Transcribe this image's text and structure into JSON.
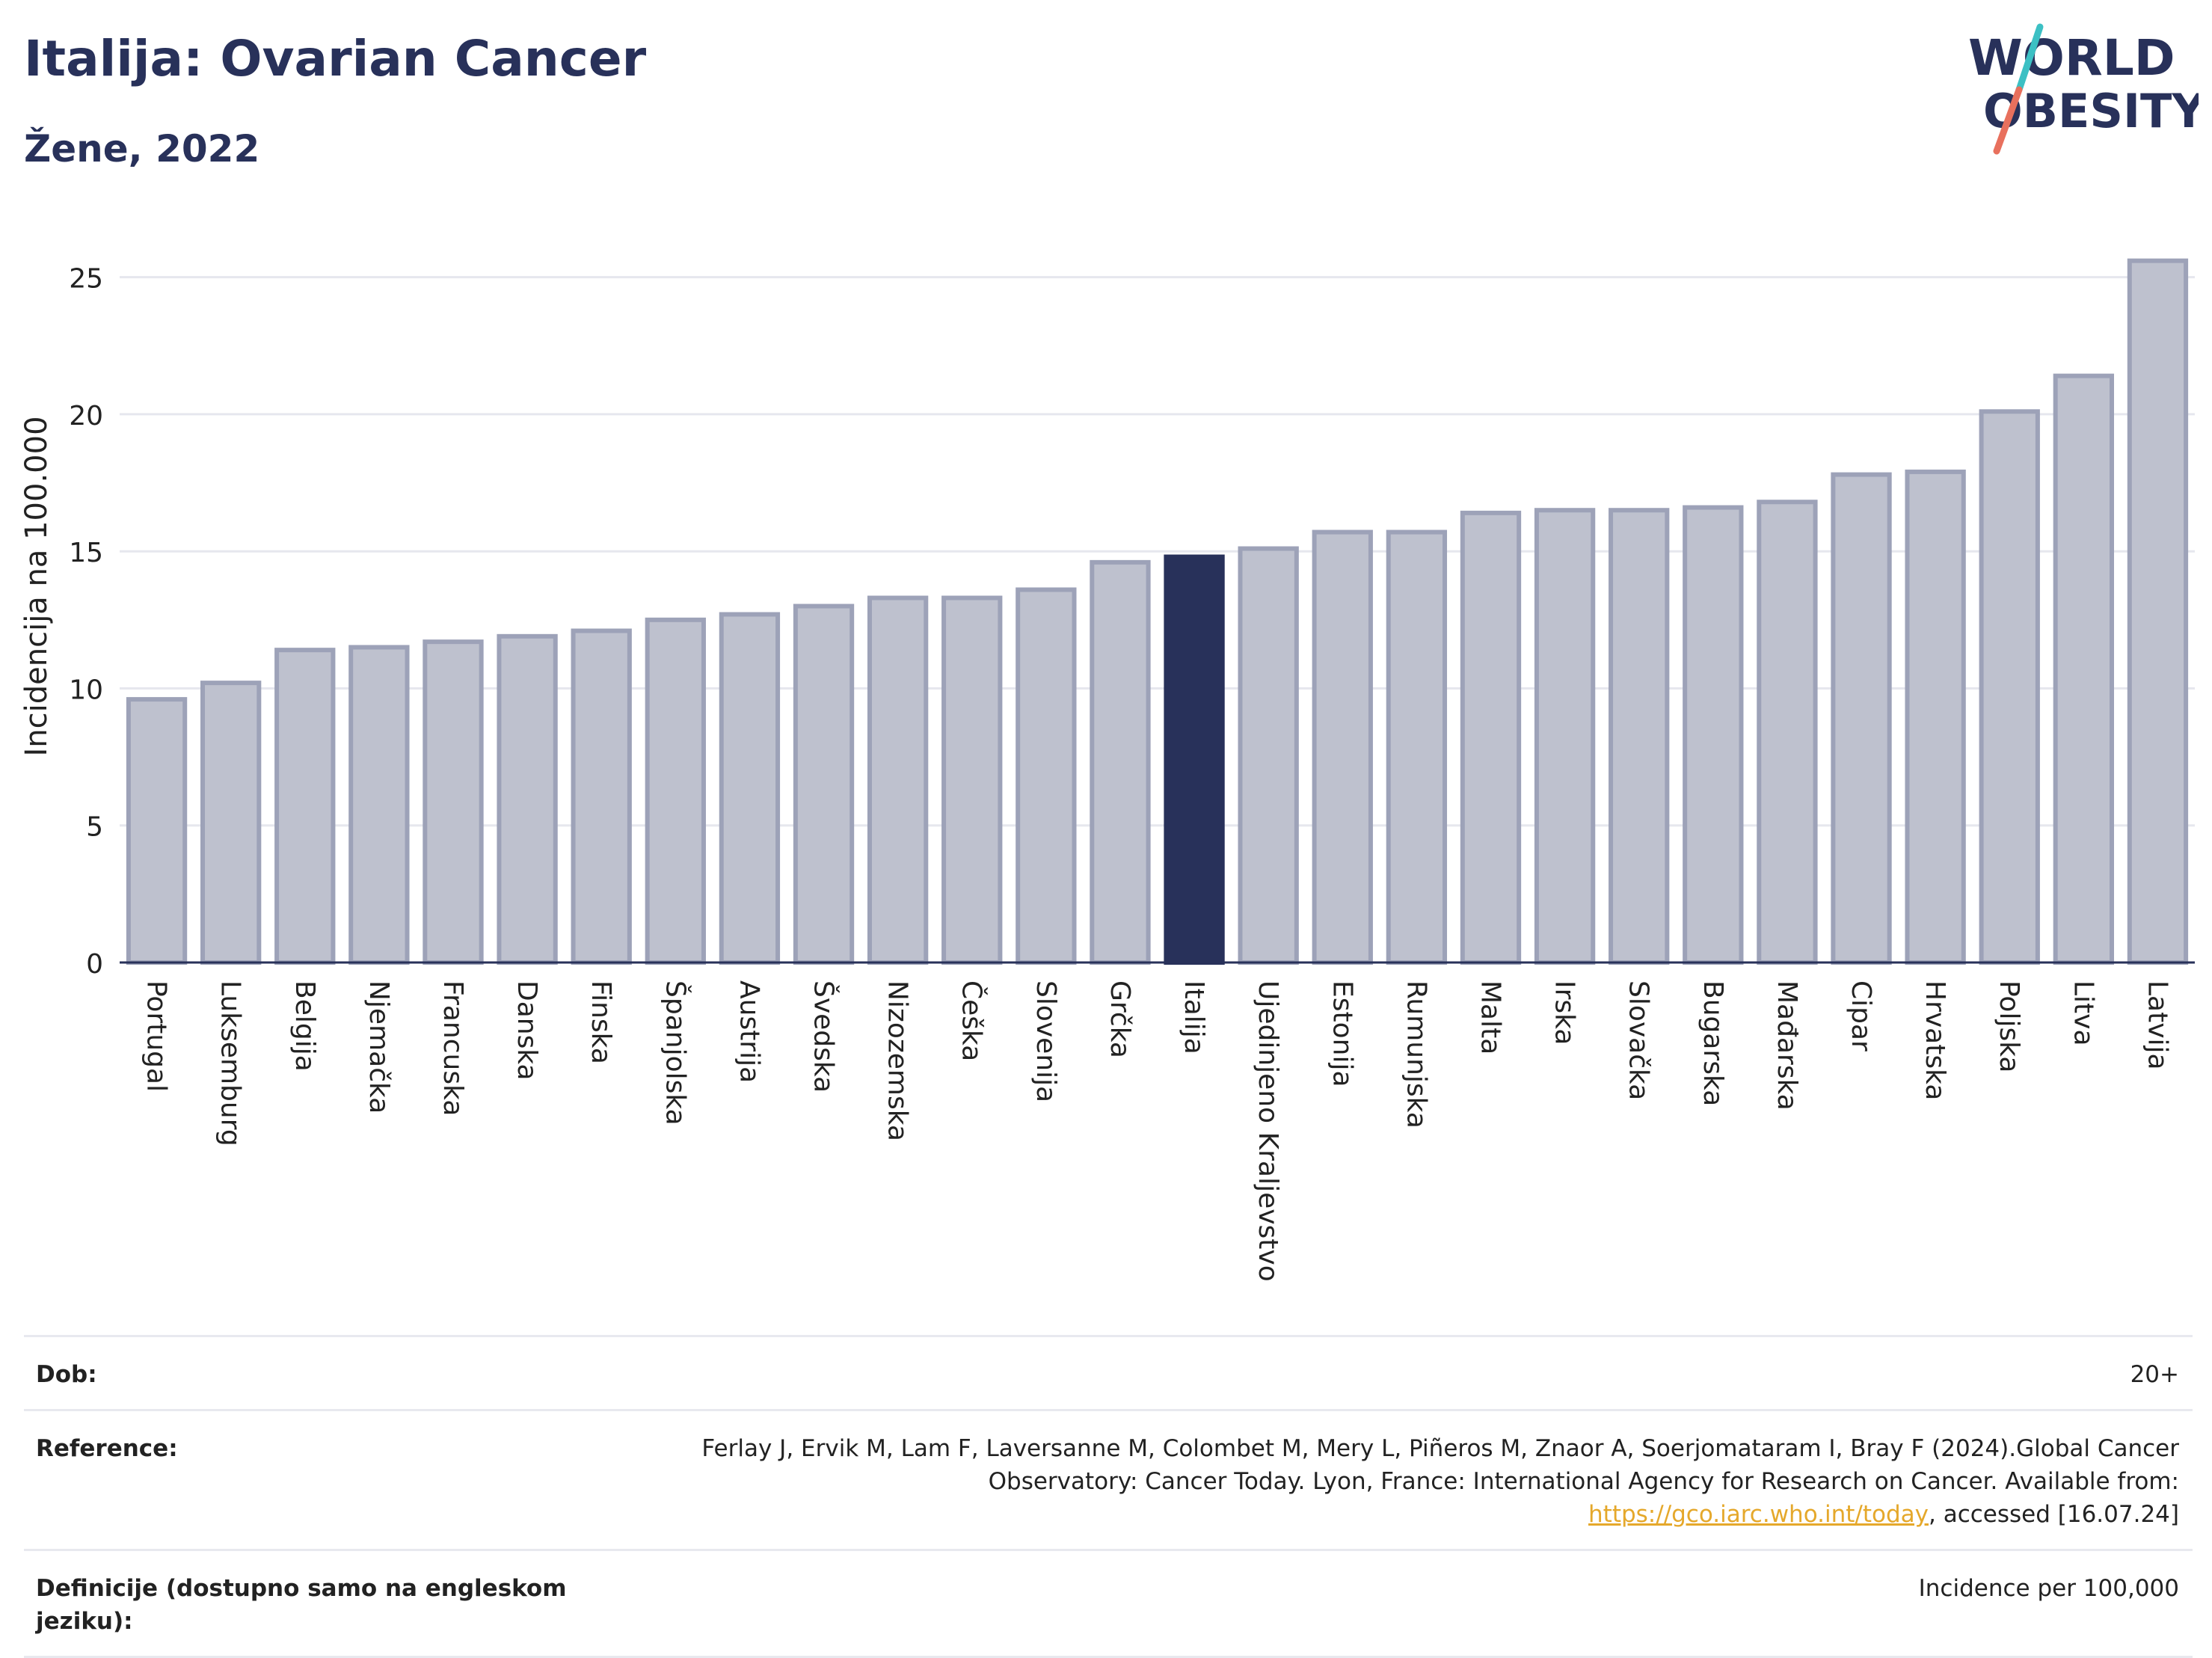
{
  "header": {
    "title": "Italija: Ovarian Cancer",
    "subtitle": "Žene, 2022"
  },
  "logo": {
    "line1": "WORLD",
    "line2": "OBESITY",
    "colors": {
      "text": "#28315a",
      "slash_top": "#3cc0c4",
      "slash_bottom": "#e8705d"
    }
  },
  "colors": {
    "bar": "#bec1ce",
    "bar_stroke": "#9da2b8",
    "highlight": "#28315a",
    "grid": "#e6e7ee",
    "axis": "#28315a"
  },
  "chart_data": {
    "type": "bar",
    "ylabel": "Incidencija na 100.000",
    "ylim": [
      0,
      26
    ],
    "yticks": [
      0,
      5,
      10,
      15,
      20,
      25
    ],
    "grid": true,
    "highlight": "Italija",
    "categories": [
      "Portugal",
      "Luksemburg",
      "Belgija",
      "Njemačka",
      "Francuska",
      "Danska",
      "Finska",
      "Španjolska",
      "Austrija",
      "Švedska",
      "Nizozemska",
      "Češka",
      "Slovenija",
      "Grčka",
      "Italija",
      "Ujedinjeno Kraljevstvo",
      "Estonija",
      "Rumunjska",
      "Malta",
      "Irska",
      "Slovačka",
      "Bugarska",
      "Mađarska",
      "Cipar",
      "Hrvatska",
      "Poljska",
      "Litva",
      "Latvija"
    ],
    "values": [
      9.6,
      10.2,
      11.4,
      11.5,
      11.7,
      11.9,
      12.1,
      12.5,
      12.7,
      13.0,
      13.3,
      13.3,
      13.6,
      14.6,
      14.8,
      15.1,
      15.7,
      15.7,
      16.4,
      16.5,
      16.5,
      16.6,
      16.8,
      17.8,
      17.9,
      20.1,
      21.4,
      25.6
    ]
  },
  "meta": {
    "age": {
      "label": "Dob:",
      "value": "20+"
    },
    "reference": {
      "label": "Reference:",
      "text_before": "Ferlay J, Ervik M, Lam F, Laversanne M, Colombet M, Mery L, Piñeros M, Znaor A, Soerjomataram I, Bray F (2024).Global Cancer Observatory: Cancer Today. Lyon, France: International Agency for Research on Cancer. Available from: ",
      "link": "https://gco.iarc.who.int/today",
      "text_after": ", accessed [16.07.24]"
    },
    "definitions": {
      "label": "Definicije (dostupno samo na engleskom jeziku):",
      "value": "Incidence per 100,000"
    }
  }
}
